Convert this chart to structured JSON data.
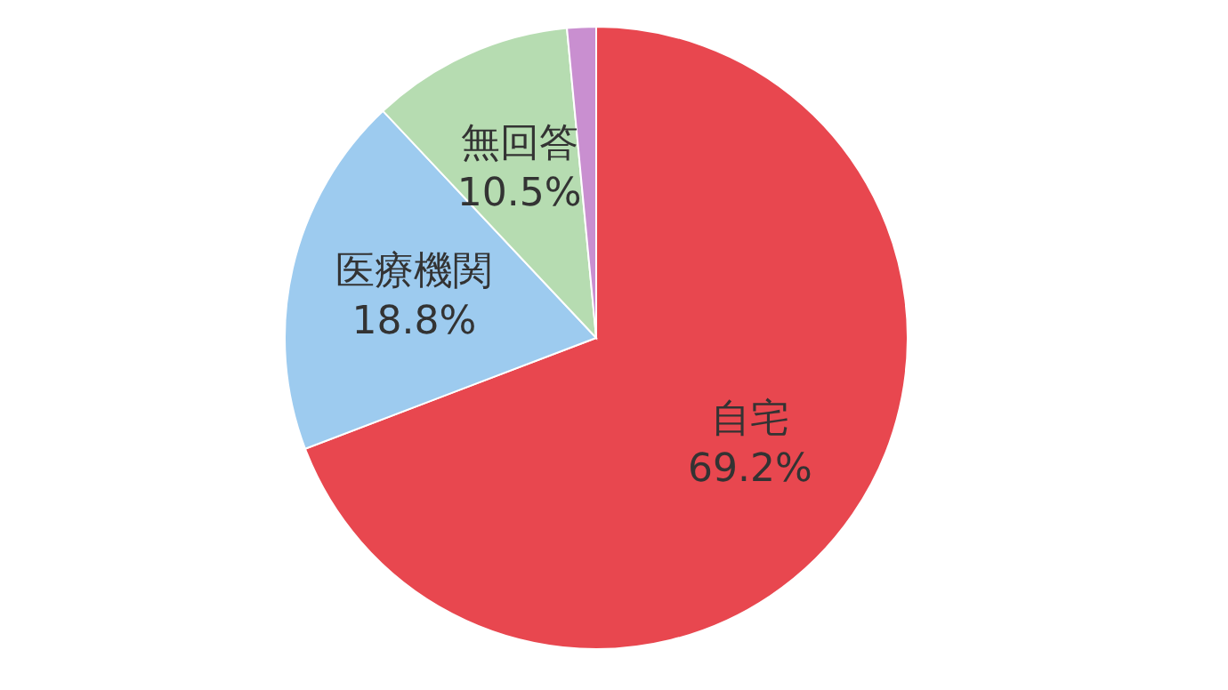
{
  "chart_data": {
    "type": "pie",
    "categories": [
      "自宅",
      "医療機関",
      "無回答",
      null
    ],
    "values": [
      69.2,
      18.8,
      10.5,
      1.5
    ],
    "value_labels": [
      "69.2%",
      "18.8%",
      "10.5%",
      null
    ],
    "colors": [
      "#e8474f",
      "#9dcbef",
      "#b6dcb1",
      "#c98fd0"
    ],
    "legend": false
  }
}
